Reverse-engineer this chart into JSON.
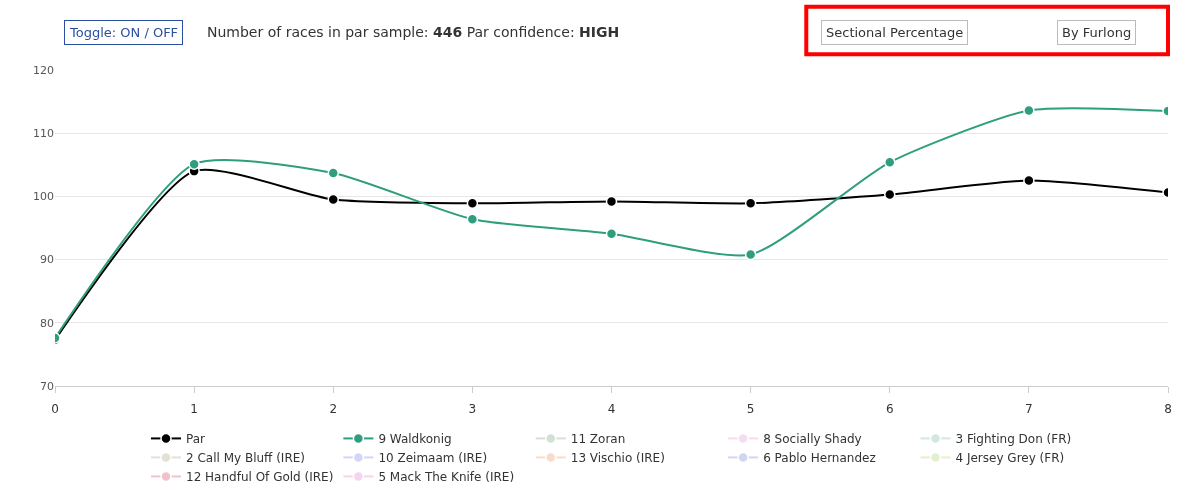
{
  "chart_data": {
    "type": "line",
    "subtitle": "Number of races in par sample: **446** Par confidence: **HIGH**",
    "annotations": [
      "Toggle: ON / OFF",
      "Sectional Percentage",
      "By Furlong"
    ],
    "x": [
      0,
      1,
      2,
      3,
      4,
      5,
      6,
      7,
      8
    ],
    "series": [
      {
        "name": "Par",
        "color": "#000000",
        "values": [
          77.3,
          104.0,
          99.5,
          98.9,
          99.2,
          98.9,
          100.3,
          102.5,
          100.6
        ]
      },
      {
        "name": "9 Waldkonig",
        "color": "#2e9e7e",
        "values": [
          77.6,
          105.1,
          103.7,
          96.4,
          94.1,
          90.8,
          105.4,
          113.6,
          113.5
        ]
      },
      {
        "name": "11 Zoran",
        "color": "#d3e0d3",
        "values": [
          null,
          null,
          null,
          null,
          null,
          null,
          null,
          null,
          null
        ]
      },
      {
        "name": "8 Socially Shady",
        "color": "#f5dcf0",
        "values": [
          null,
          null,
          null,
          null,
          null,
          null,
          null,
          null,
          null
        ]
      },
      {
        "name": "3 Fighting Don (FR)",
        "color": "#d3e6e0",
        "values": [
          null,
          null,
          null,
          null,
          null,
          null,
          null,
          null,
          null
        ]
      },
      {
        "name": "2 Call My Bluff (IRE)",
        "color": "#e3e0d6",
        "values": [
          null,
          null,
          null,
          null,
          null,
          null,
          null,
          null,
          null
        ]
      },
      {
        "name": "10 Zeimaam (IRE)",
        "color": "#d3d6f8",
        "values": [
          null,
          null,
          null,
          null,
          null,
          null,
          null,
          null,
          null
        ]
      },
      {
        "name": "13 Vischio (IRE)",
        "color": "#f8dccb",
        "values": [
          null,
          null,
          null,
          null,
          null,
          null,
          null,
          null,
          null
        ]
      },
      {
        "name": "6 Pablo Hernandez",
        "color": "#d0d6ee",
        "values": [
          null,
          null,
          null,
          null,
          null,
          null,
          null,
          null,
          null
        ]
      },
      {
        "name": "4 Jersey Grey (FR)",
        "color": "#e3f0cf",
        "values": [
          null,
          null,
          null,
          null,
          null,
          null,
          null,
          null,
          null
        ]
      },
      {
        "name": "12 Handful Of Gold (IRE)",
        "color": "#f2c2cb",
        "values": [
          null,
          null,
          null,
          null,
          null,
          null,
          null,
          null,
          null
        ]
      },
      {
        "name": "5 Mack The Knife (IRE)",
        "color": "#f8d3ec",
        "values": [
          null,
          null,
          null,
          null,
          null,
          null,
          null,
          null,
          null
        ]
      }
    ],
    "xlim": [
      0,
      8
    ],
    "xticks": [
      0,
      1,
      2,
      3,
      4,
      5,
      6,
      7,
      8
    ],
    "ylim": [
      70,
      120
    ],
    "yticks": [
      70,
      80,
      90,
      100,
      110,
      120
    ],
    "grid": "y",
    "legend": "bottom",
    "marker": "circle",
    "line_style": "solid"
  }
}
